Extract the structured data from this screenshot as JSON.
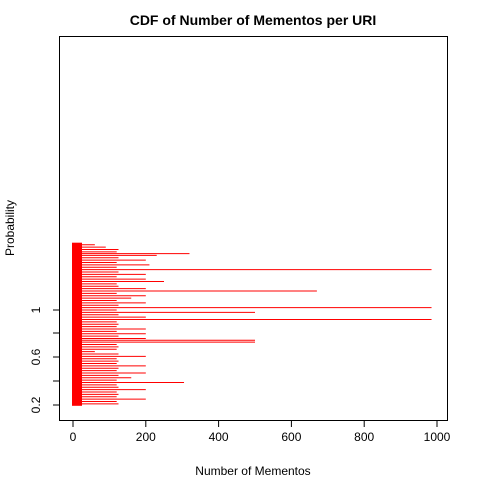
{
  "chart_data": {
    "type": "line",
    "title": "CDF of Number of Mementos per URI",
    "xlabel": "Number of Mementos",
    "ylabel": "Probability",
    "xlim": [
      0,
      1000
    ],
    "x_ticks": [
      0,
      200,
      400,
      600,
      800,
      1000
    ],
    "y_ticks": [
      0.2,
      0.6,
      1
    ],
    "y_ticks_visible_range": [
      0.2,
      1.0
    ],
    "line_color": "#ff0000",
    "grid": false,
    "legend": "none",
    "description_of_marks": "dense horizontal red segments starting at x=0, most ending near 120-210, a few extending to ~500, ~670 and ~985",
    "series": [
      {
        "values": [
          {
            "y": 0.21,
            "x": 125
          },
          {
            "y": 0.23,
            "x": 120
          },
          {
            "y": 0.25,
            "x": 200
          },
          {
            "y": 0.27,
            "x": 120
          },
          {
            "y": 0.29,
            "x": 125
          },
          {
            "y": 0.31,
            "x": 120
          },
          {
            "y": 0.33,
            "x": 200
          },
          {
            "y": 0.35,
            "x": 125
          },
          {
            "y": 0.37,
            "x": 120
          },
          {
            "y": 0.39,
            "x": 305
          },
          {
            "y": 0.41,
            "x": 120
          },
          {
            "y": 0.43,
            "x": 160
          },
          {
            "y": 0.45,
            "x": 125
          },
          {
            "y": 0.47,
            "x": 200
          },
          {
            "y": 0.49,
            "x": 120
          },
          {
            "y": 0.51,
            "x": 125
          },
          {
            "y": 0.53,
            "x": 200
          },
          {
            "y": 0.55,
            "x": 120
          },
          {
            "y": 0.57,
            "x": 125
          },
          {
            "y": 0.59,
            "x": 120
          },
          {
            "y": 0.61,
            "x": 200
          },
          {
            "y": 0.63,
            "x": 125
          },
          {
            "y": 0.65,
            "x": 60
          },
          {
            "y": 0.67,
            "x": 120
          },
          {
            "y": 0.69,
            "x": 125
          },
          {
            "y": 0.71,
            "x": 120
          },
          {
            "y": 0.73,
            "x": 500
          },
          {
            "y": 0.745,
            "x": 500
          },
          {
            "y": 0.76,
            "x": 200
          },
          {
            "y": 0.78,
            "x": 125
          },
          {
            "y": 0.8,
            "x": 200
          },
          {
            "y": 0.82,
            "x": 120
          },
          {
            "y": 0.84,
            "x": 200
          },
          {
            "y": 0.86,
            "x": 120
          },
          {
            "y": 0.88,
            "x": 125
          },
          {
            "y": 0.9,
            "x": 120
          },
          {
            "y": 0.92,
            "x": 985
          },
          {
            "y": 0.94,
            "x": 200
          },
          {
            "y": 0.96,
            "x": 125
          },
          {
            "y": 0.98,
            "x": 500
          },
          {
            "y": 1.0,
            "x": 120
          },
          {
            "y": 1.02,
            "x": 985
          },
          {
            "y": 1.04,
            "x": 125
          },
          {
            "y": 1.06,
            "x": 200
          },
          {
            "y": 1.08,
            "x": 120
          },
          {
            "y": 1.1,
            "x": 160
          },
          {
            "y": 1.12,
            "x": 200
          },
          {
            "y": 1.14,
            "x": 120
          },
          {
            "y": 1.16,
            "x": 670
          },
          {
            "y": 1.18,
            "x": 200
          },
          {
            "y": 1.2,
            "x": 125
          },
          {
            "y": 1.22,
            "x": 120
          },
          {
            "y": 1.24,
            "x": 250
          },
          {
            "y": 1.26,
            "x": 200
          },
          {
            "y": 1.28,
            "x": 120
          },
          {
            "y": 1.3,
            "x": 200
          },
          {
            "y": 1.32,
            "x": 125
          },
          {
            "y": 1.34,
            "x": 985
          },
          {
            "y": 1.36,
            "x": 120
          },
          {
            "y": 1.38,
            "x": 210
          },
          {
            "y": 1.4,
            "x": 120
          },
          {
            "y": 1.42,
            "x": 200
          },
          {
            "y": 1.44,
            "x": 125
          },
          {
            "y": 1.46,
            "x": 230
          },
          {
            "y": 1.475,
            "x": 320
          },
          {
            "y": 1.49,
            "x": 120
          },
          {
            "y": 1.51,
            "x": 125
          },
          {
            "y": 1.53,
            "x": 90
          },
          {
            "y": 1.55,
            "x": 60
          }
        ]
      }
    ]
  }
}
